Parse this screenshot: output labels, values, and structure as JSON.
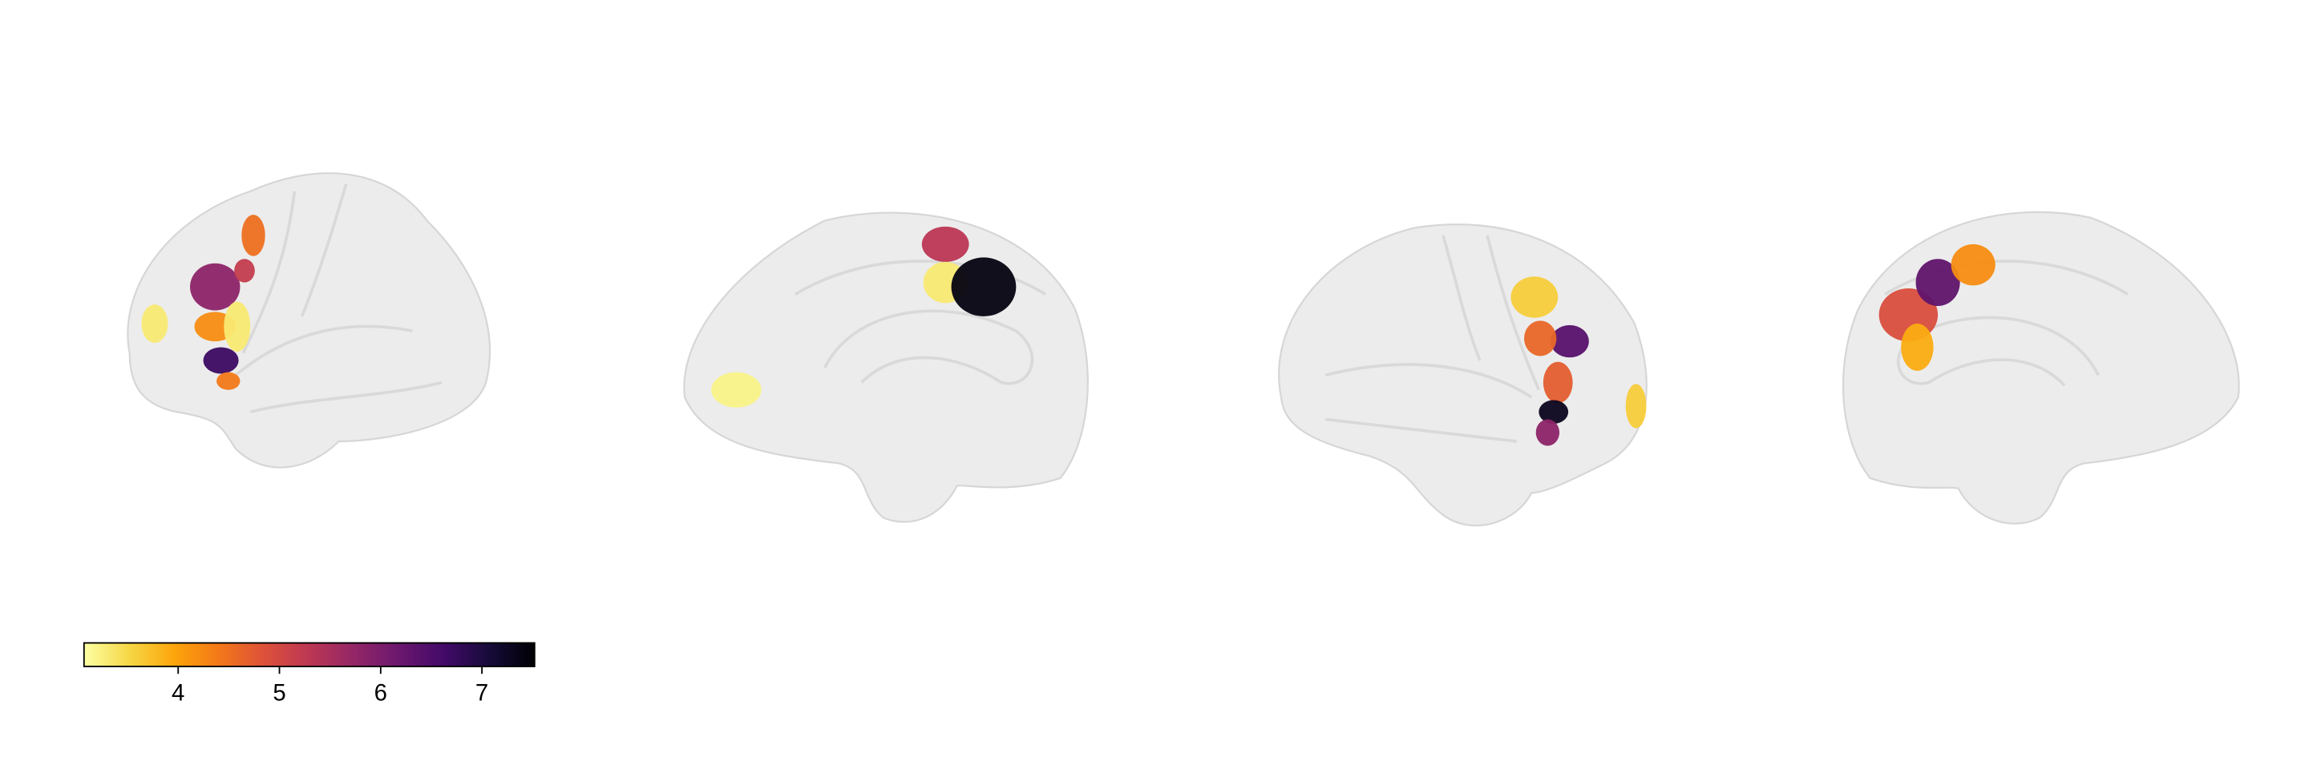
{
  "colorbar": {
    "lim": [
      3.07,
      7.52
    ],
    "ticks": [
      4,
      5,
      6,
      7
    ],
    "colors": [
      "#fcffa4",
      "#f6d746",
      "#fca50a",
      "#f37819",
      "#dd513a",
      "#bc3754",
      "#932667",
      "#6a176e",
      "#420a68",
      "#160b39",
      "#000004"
    ]
  },
  "brains": [
    {
      "regions": [
        {
          "value": 5.8
        },
        {
          "value": 4.5
        },
        {
          "value": 4.2
        },
        {
          "value": 3.3
        },
        {
          "value": 3.3
        },
        {
          "value": 6.7
        },
        {
          "value": 4.4
        },
        {
          "value": 5.2
        }
      ]
    },
    {
      "regions": [
        {
          "value": 5.3
        },
        {
          "value": 3.3
        },
        {
          "value": 7.4
        },
        {
          "value": 3.2
        }
      ]
    },
    {
      "regions": [
        {
          "value": 3.6
        },
        {
          "value": 6.4
        },
        {
          "value": 4.6
        },
        {
          "value": 4.7
        },
        {
          "value": 7.3
        },
        {
          "value": 5.8
        },
        {
          "value": 3.6
        }
      ]
    },
    {
      "regions": [
        {
          "value": 4.9
        },
        {
          "value": 6.3
        },
        {
          "value": 4.2
        },
        {
          "value": 3.9
        }
      ]
    }
  ]
}
